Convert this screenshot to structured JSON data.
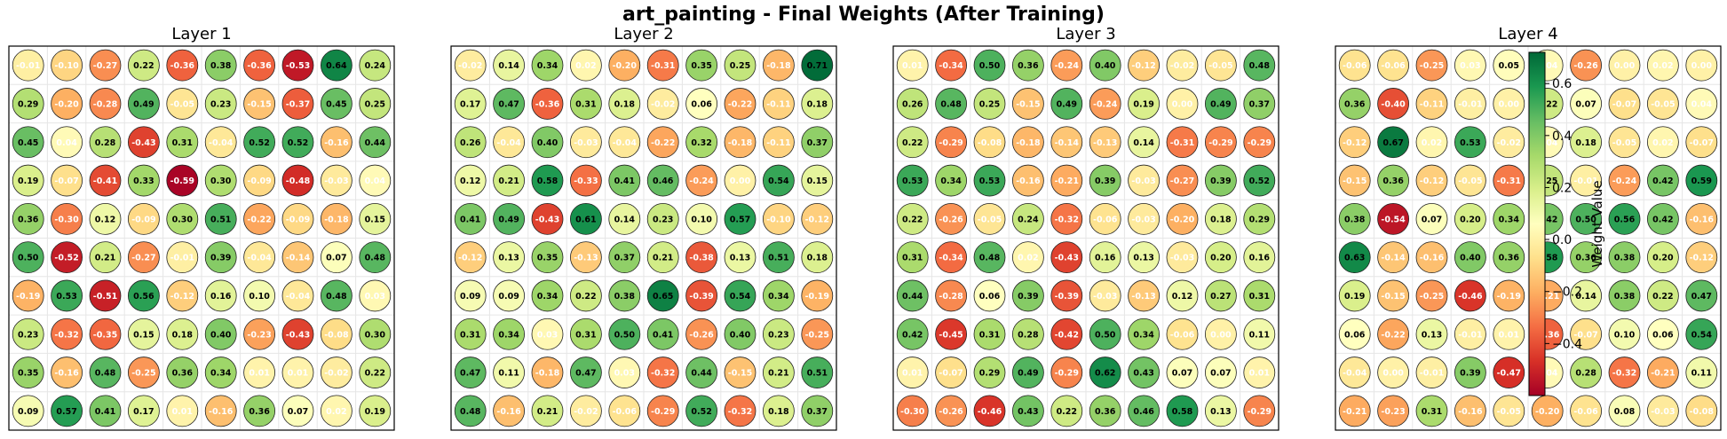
{
  "title": "art_painting - Final Weights (After Training)",
  "chart_data": {
    "type": "heatmap",
    "colorbar": {
      "label": "Weight Value",
      "ticks": [
        "0.6",
        "0.4",
        "0.2",
        "0.0",
        "−0.2",
        "−0.4"
      ],
      "range": [
        -0.6,
        0.72
      ],
      "colormap": "RdYlGn"
    },
    "layers": [
      {
        "title": "Layer 1",
        "values": [
          [
            -0.01,
            -0.1,
            -0.27,
            0.22,
            -0.36,
            0.38,
            -0.36,
            -0.53,
            0.64,
            0.24
          ],
          [
            0.29,
            -0.2,
            -0.28,
            0.49,
            -0.05,
            0.23,
            -0.15,
            -0.37,
            0.45,
            0.25
          ],
          [
            0.45,
            0.04,
            0.28,
            -0.43,
            0.31,
            -0.04,
            0.52,
            0.52,
            -0.16,
            0.44
          ],
          [
            0.19,
            -0.07,
            -0.41,
            0.33,
            -0.59,
            0.3,
            -0.09,
            -0.48,
            -0.03,
            0.04
          ],
          [
            0.36,
            -0.3,
            0.12,
            -0.09,
            0.3,
            0.51,
            -0.22,
            -0.09,
            -0.18,
            0.15
          ],
          [
            0.5,
            -0.52,
            0.21,
            -0.27,
            -0.01,
            0.39,
            -0.04,
            -0.14,
            0.07,
            0.48
          ],
          [
            -0.19,
            0.53,
            -0.51,
            0.56,
            -0.12,
            0.16,
            0.1,
            -0.04,
            0.48,
            0.03
          ],
          [
            0.23,
            -0.32,
            -0.35,
            0.15,
            0.18,
            0.4,
            -0.23,
            -0.43,
            -0.08,
            0.3
          ],
          [
            0.35,
            -0.16,
            0.48,
            -0.25,
            0.36,
            0.34,
            0.01,
            0.01,
            -0.02,
            0.22
          ],
          [
            0.09,
            0.57,
            0.41,
            0.17,
            0.01,
            -0.16,
            0.36,
            0.07,
            0.02,
            0.19
          ]
        ]
      },
      {
        "title": "Layer 2",
        "values": [
          [
            -0.02,
            0.14,
            0.34,
            0.02,
            -0.2,
            -0.31,
            0.35,
            0.25,
            -0.18,
            0.71
          ],
          [
            0.17,
            0.47,
            -0.36,
            0.31,
            0.18,
            -0.02,
            0.06,
            -0.22,
            -0.11,
            0.18
          ],
          [
            0.26,
            -0.04,
            0.4,
            -0.03,
            -0.04,
            -0.22,
            0.32,
            -0.18,
            -0.11,
            0.37
          ],
          [
            0.12,
            0.21,
            0.58,
            -0.33,
            0.41,
            0.46,
            -0.24,
            -0.0,
            0.54,
            0.15
          ],
          [
            0.41,
            0.49,
            -0.43,
            0.61,
            0.14,
            0.23,
            0.1,
            0.57,
            -0.1,
            -0.12
          ],
          [
            -0.12,
            0.13,
            0.35,
            -0.13,
            0.37,
            0.21,
            -0.38,
            0.13,
            0.51,
            0.18
          ],
          [
            0.09,
            0.09,
            0.34,
            0.22,
            0.38,
            0.65,
            -0.39,
            0.54,
            0.34,
            -0.19
          ],
          [
            0.31,
            0.34,
            0.03,
            0.31,
            0.5,
            0.41,
            -0.26,
            0.4,
            0.23,
            -0.25
          ],
          [
            0.47,
            0.11,
            -0.18,
            0.47,
            0.03,
            -0.32,
            0.44,
            -0.15,
            0.21,
            0.51
          ],
          [
            0.48,
            -0.16,
            0.21,
            -0.02,
            -0.06,
            -0.29,
            0.52,
            -0.32,
            0.18,
            0.37
          ]
        ]
      },
      {
        "title": "Layer 3",
        "values": [
          [
            0.01,
            -0.34,
            0.5,
            0.36,
            -0.24,
            0.4,
            -0.12,
            -0.02,
            -0.05,
            0.48
          ],
          [
            0.26,
            0.48,
            0.25,
            -0.15,
            0.49,
            -0.24,
            0.19,
            0.0,
            0.49,
            0.37
          ],
          [
            0.22,
            -0.29,
            -0.08,
            -0.18,
            -0.14,
            -0.13,
            0.14,
            -0.31,
            -0.29,
            -0.29
          ],
          [
            0.53,
            0.34,
            0.53,
            -0.16,
            -0.21,
            0.39,
            -0.03,
            -0.27,
            0.39,
            0.52
          ],
          [
            0.22,
            -0.26,
            -0.05,
            0.24,
            -0.32,
            -0.06,
            -0.03,
            -0.2,
            0.18,
            0.29
          ],
          [
            0.31,
            -0.34,
            0.48,
            0.02,
            -0.43,
            0.16,
            0.13,
            -0.03,
            0.2,
            0.16
          ],
          [
            0.44,
            -0.28,
            0.06,
            0.39,
            -0.39,
            -0.03,
            -0.13,
            0.12,
            0.27,
            0.31
          ],
          [
            0.42,
            -0.45,
            0.31,
            0.28,
            -0.42,
            0.5,
            0.34,
            -0.06,
            -0.0,
            0.11
          ],
          [
            0.01,
            -0.07,
            0.29,
            0.49,
            -0.29,
            0.62,
            0.43,
            0.07,
            0.07,
            0.01
          ],
          [
            -0.3,
            -0.26,
            -0.46,
            0.43,
            0.22,
            0.36,
            0.46,
            0.58,
            0.13,
            -0.29
          ]
        ]
      },
      {
        "title": "Layer 4",
        "values": [
          [
            -0.06,
            -0.06,
            -0.25,
            0.03,
            0.05,
            0.04,
            -0.26,
            0.0,
            0.02,
            0.0
          ],
          [
            0.36,
            -0.4,
            -0.11,
            -0.01,
            -0.0,
            0.22,
            0.07,
            -0.07,
            -0.05,
            0.04
          ],
          [
            -0.12,
            0.67,
            0.02,
            0.53,
            -0.02,
            0.04,
            0.18,
            -0.05,
            0.02,
            -0.07
          ],
          [
            -0.15,
            0.36,
            -0.12,
            -0.05,
            -0.31,
            0.25,
            -0.01,
            -0.24,
            0.42,
            0.59
          ],
          [
            0.38,
            -0.54,
            0.07,
            0.2,
            0.34,
            0.42,
            0.5,
            0.56,
            0.42,
            -0.16
          ],
          [
            0.63,
            -0.14,
            -0.16,
            0.4,
            0.36,
            0.58,
            0.36,
            0.38,
            0.2,
            -0.12
          ],
          [
            0.19,
            -0.15,
            -0.25,
            -0.46,
            -0.19,
            -0.21,
            0.14,
            0.38,
            0.22,
            0.47
          ],
          [
            0.06,
            -0.22,
            0.13,
            -0.01,
            0.01,
            -0.36,
            -0.07,
            0.1,
            0.06,
            0.54
          ],
          [
            -0.04,
            0.0,
            -0.01,
            0.39,
            -0.47,
            0.04,
            0.28,
            -0.32,
            -0.21,
            0.11
          ],
          [
            -0.21,
            -0.23,
            0.31,
            -0.16,
            -0.05,
            -0.2,
            -0.06,
            0.08,
            -0.03,
            -0.08
          ]
        ]
      }
    ]
  }
}
